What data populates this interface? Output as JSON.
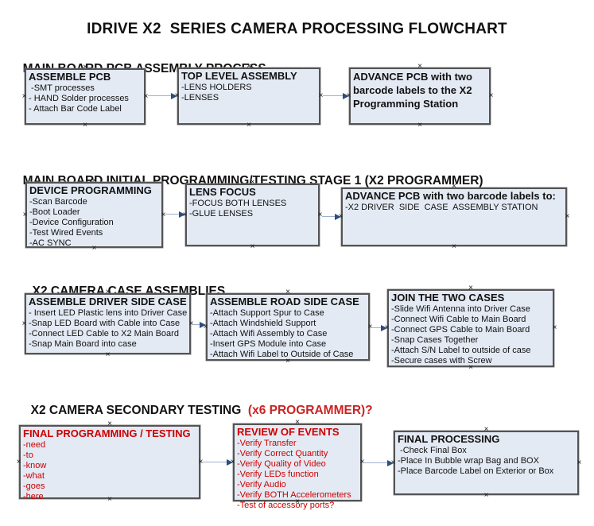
{
  "title": "IDRIVE X2  SERIES CAMERA PROCESSING FLOWCHART",
  "colors": {
    "background": "#ffffff",
    "box_fill": "#e4eaf4",
    "box_border": "#545454",
    "arrow_line": "#9db1cb",
    "arrow_head": "#2d4d7c",
    "red_text": "#cc0000",
    "heading_red": "#cc2222",
    "text": "#111111"
  },
  "glyphs": {
    "connector_handle": "×"
  },
  "sections": [
    {
      "heading": "MAIN BOARD PCB ASSEMBLY PROCESS",
      "heading_suffix": ""
    },
    {
      "heading": "MAIN BOARD INITIAL PROGRAMMING/TESTING STAGE 1 (X2 PROGRAMMER)",
      "heading_suffix": ""
    },
    {
      "heading": "X2 CAMERA CASE ASSEMBLIES",
      "heading_suffix": ""
    },
    {
      "heading": "X2 CAMERA SECONDARY TESTING  ",
      "heading_suffix": "(x6 PROGRAMMER)?"
    }
  ],
  "boxes": {
    "assemble_pcb": {
      "title": "ASSEMBLE PCB",
      "lines": [
        " -SMT processes",
        "- HAND Solder processes",
        "- Attach Bar Code Label"
      ]
    },
    "top_level_assembly": {
      "title": "TOP LEVEL ASSEMBLY",
      "lines": [
        "-LENS HOLDERS",
        "-LENSES"
      ]
    },
    "advance_to_programming_station": {
      "title": "ADVANCE PCB with two barcode labels to the X2 Programming Station",
      "lines": []
    },
    "device_programming": {
      "title": "DEVICE PROGRAMMING",
      "lines": [
        "-Scan Barcode",
        "-Boot Loader",
        "-Device Configuration",
        "-Test Wired Events",
        "-AC SYNC"
      ]
    },
    "lens_focus": {
      "title": "LENS FOCUS",
      "lines": [
        "-FOCUS BOTH LENSES",
        "-GLUE LENSES"
      ]
    },
    "advance_to_driver_side": {
      "title": "ADVANCE PCB with two barcode labels to:",
      "lines": [
        "-X2 DRIVER  SIDE  CASE  ASSEMBLY STATION"
      ]
    },
    "assemble_driver_side_case": {
      "title": "ASSEMBLE DRIVER SIDE CASE",
      "lines": [
        "- Insert LED Plastic lens into Driver Case",
        "-Snap LED Board with Cable into Case",
        "-Connect LED Cable to X2 Main Board",
        "-Snap Main Board into case"
      ]
    },
    "assemble_road_side_case": {
      "title": "ASSEMBLE ROAD SIDE CASE",
      "lines": [
        "-Attach Support Spur to Case",
        "-Attach Windshield Support",
        "-Attach Wifi Assembly to Case",
        "-Insert GPS Module into Case",
        "-Attach Wifi Label to Outside of Case"
      ]
    },
    "join_the_two_cases": {
      "title": "JOIN THE TWO CASES",
      "lines": [
        "-Slide Wifi Antenna into Driver Case",
        "-Connect Wifi Cable to Main Board",
        "-Connect GPS Cable to Main Board",
        "-Snap Cases Together",
        "-Attach S/N Label to outside of case",
        "-Secure cases with Screw"
      ]
    },
    "final_programming_testing": {
      "title": "FINAL PROGRAMMING / TESTING",
      "lines": [
        "-need",
        "-to",
        "-know",
        "-what",
        "-goes",
        "-here"
      ]
    },
    "review_of_events": {
      "title": "REVIEW OF EVENTS",
      "lines": [
        "-Verify Transfer",
        "-Verify Correct Quantity",
        "-Verify Quality of Video",
        "-Verify LEDs function",
        "-Verify Audio",
        "-Verify BOTH Accelerometers",
        "-Test of accessory ports?"
      ]
    },
    "final_processing": {
      "title": "FINAL PROCESSING",
      "lines": [
        " -Check Final Box",
        "-Place In Bubble wrap Bag and BOX",
        "-Place Barcode Label on Exterior or Box"
      ]
    }
  }
}
